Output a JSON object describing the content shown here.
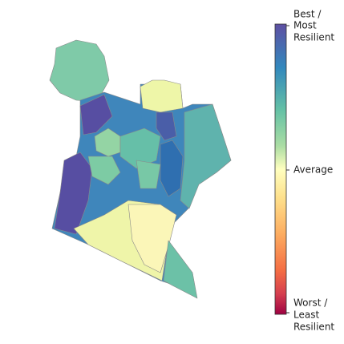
{
  "colorbar": {
    "top_label": [
      "Best /",
      "Most",
      "Resilient"
    ],
    "middle_label": "Average",
    "bottom_label": [
      "Worst /",
      "Least",
      "Resilient"
    ]
  }
}
